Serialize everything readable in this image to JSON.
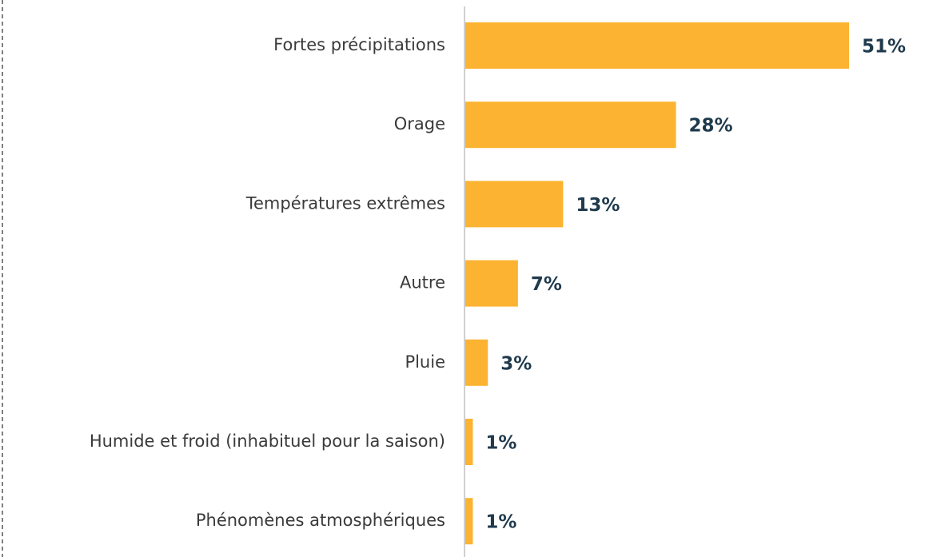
{
  "chart_data": {
    "type": "bar",
    "orientation": "horizontal",
    "categories": [
      "Fortes précipitations",
      "Orage",
      "Températures extrêmes",
      "Autre",
      "Pluie",
      "Humide et froid (inhabituel pour la saison)",
      "Phénomènes atmosphériques"
    ],
    "values": [
      51,
      28,
      13,
      7,
      3,
      1,
      1
    ],
    "value_labels": [
      "51%",
      "28%",
      "13%",
      "7%",
      "3%",
      "1%",
      "1%"
    ],
    "color": "#fbb331"
  }
}
